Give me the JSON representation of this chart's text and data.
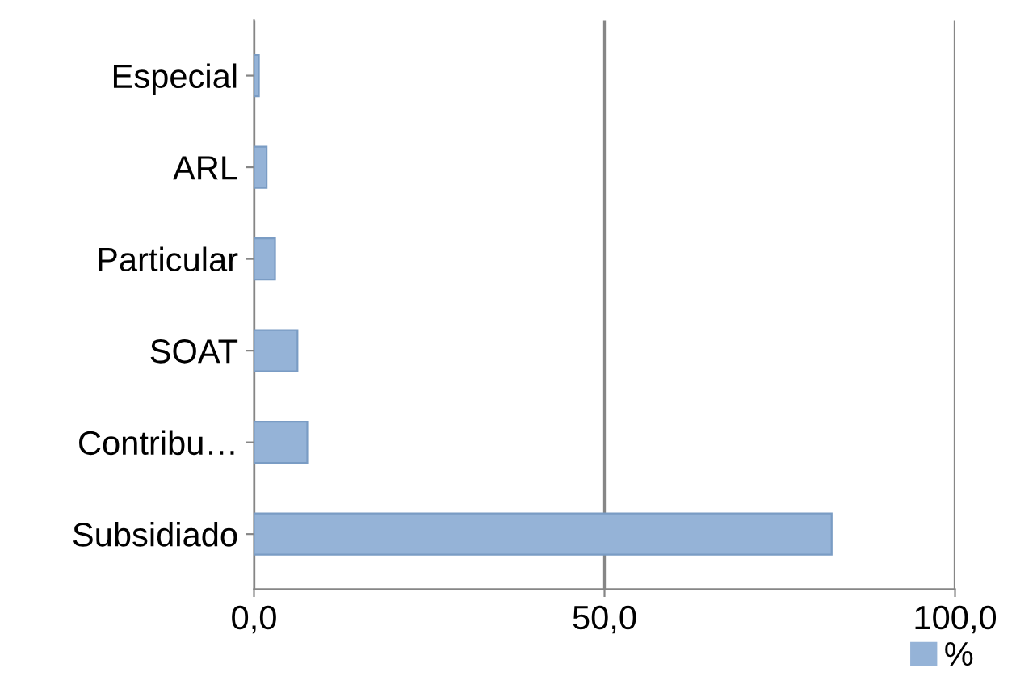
{
  "chart_data": {
    "type": "bar",
    "orientation": "horizontal",
    "categories": [
      "Especial",
      "ARL",
      "Particular",
      "SOAT",
      "Contribu…",
      "Subsidiado"
    ],
    "series": [
      {
        "name": "%",
        "color": "#95b3d7",
        "values": [
          0.7,
          1.8,
          3.0,
          6.2,
          7.6,
          82.4
        ]
      }
    ],
    "xlim": [
      0,
      100
    ],
    "xticks": [
      {
        "value": 0,
        "label": "0,0"
      },
      {
        "value": 50,
        "label": "50,0"
      },
      {
        "value": 100,
        "label": "100,0"
      }
    ],
    "grid": "x",
    "legend": "bottom right"
  }
}
